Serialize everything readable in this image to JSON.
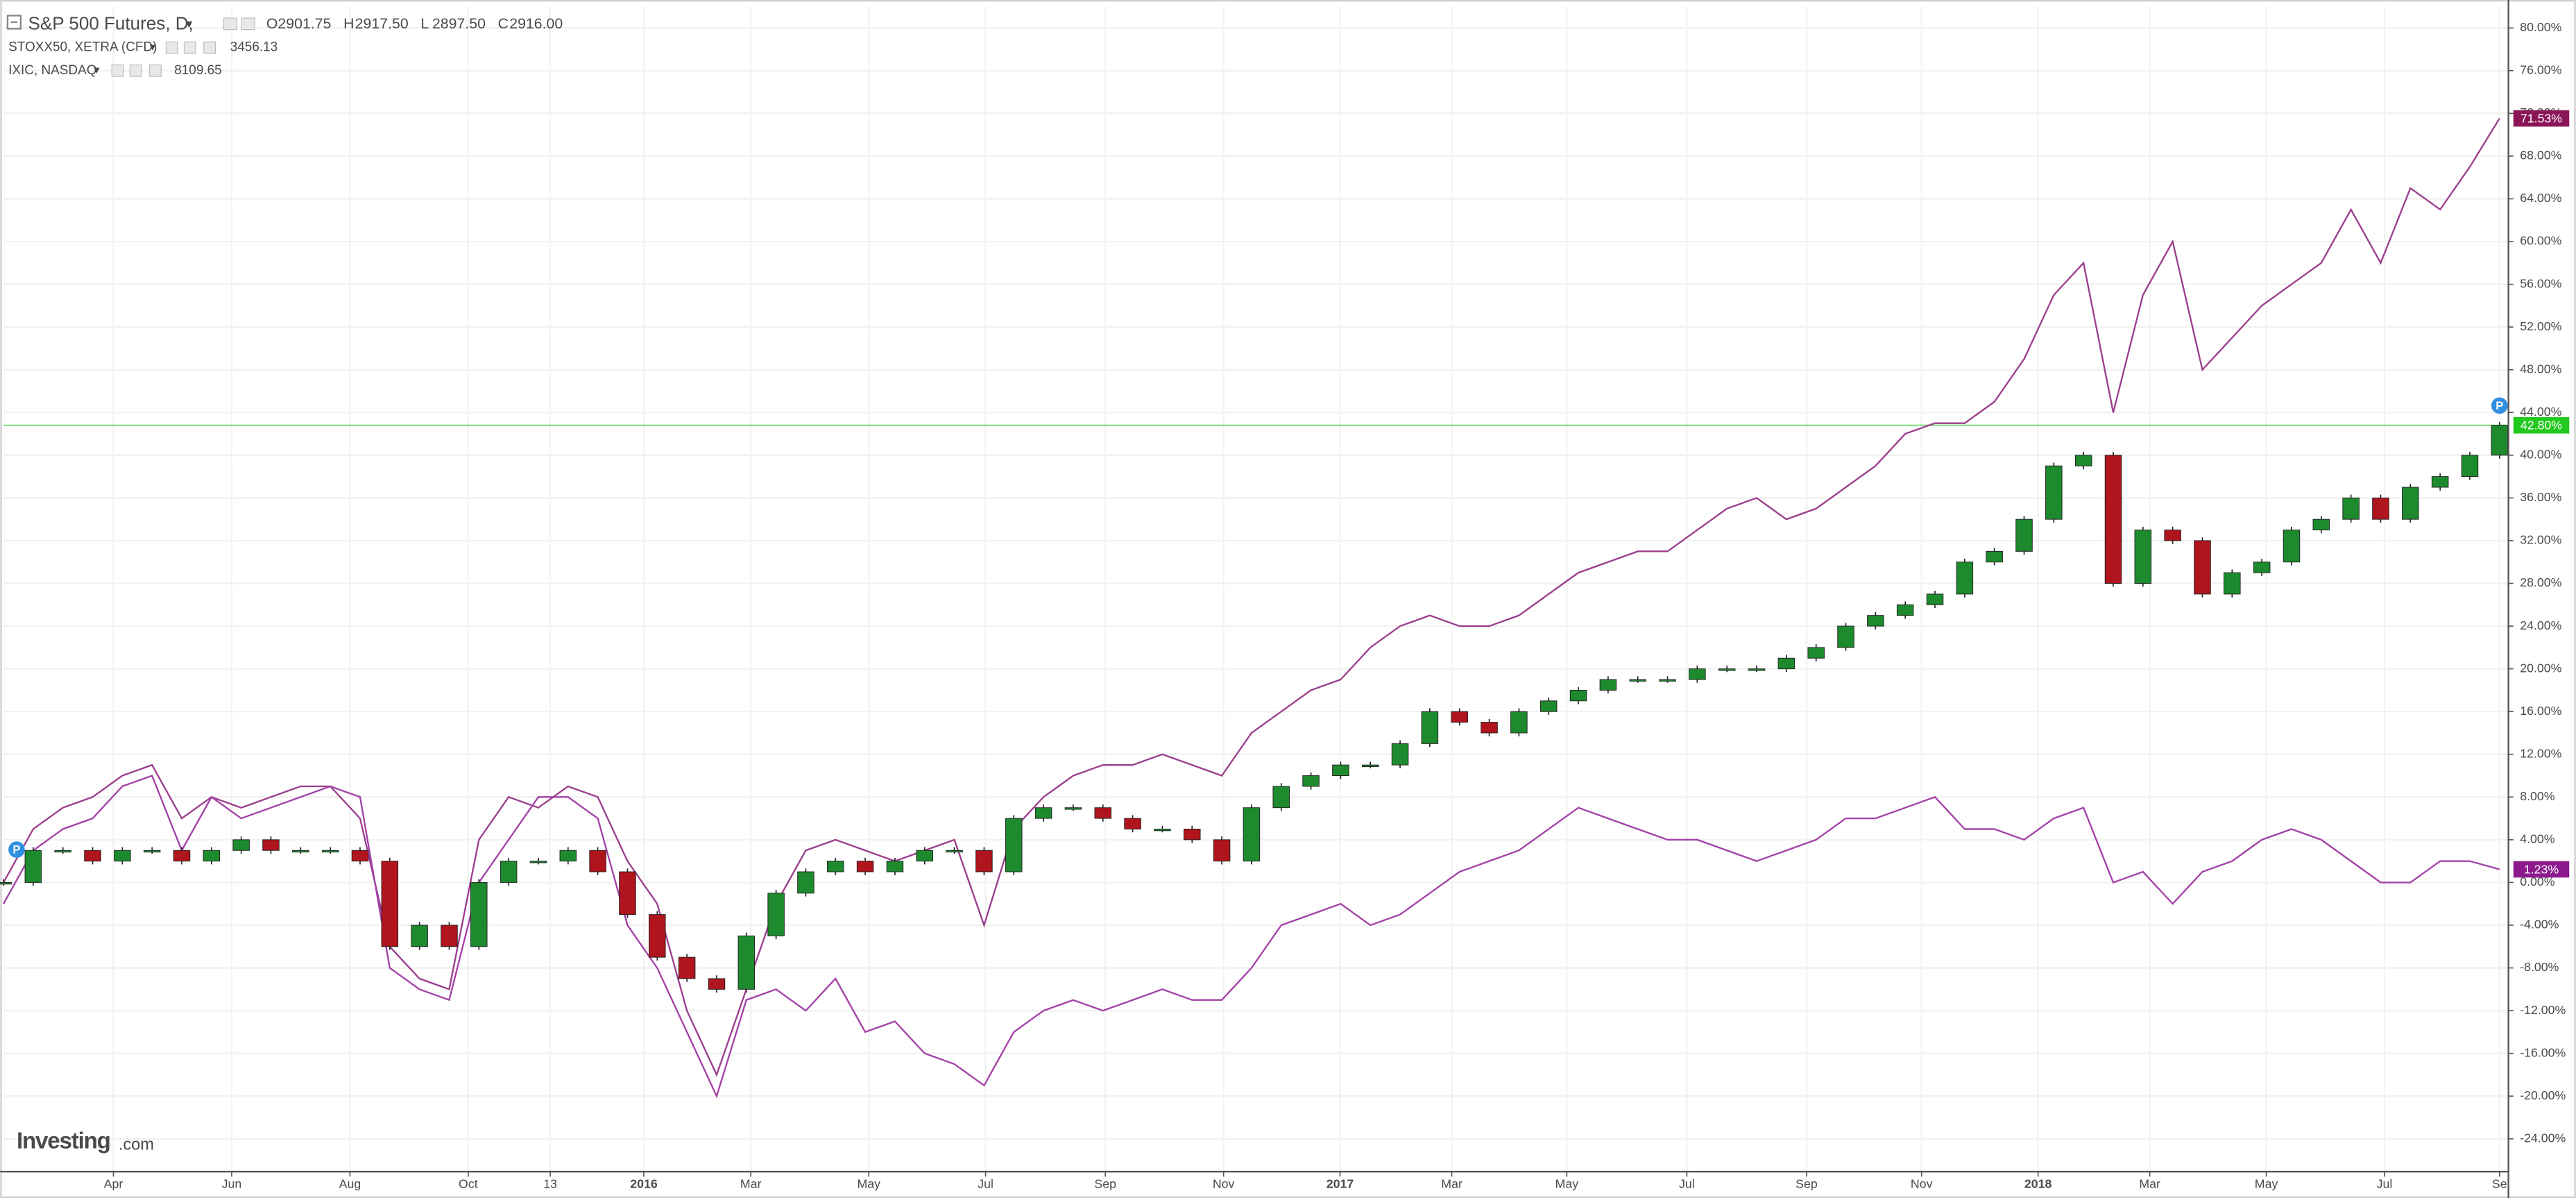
{
  "chart_data": {
    "type": "line",
    "xlim": [
      0,
      84.3
    ],
    "ylim": [
      -27,
      82
    ],
    "grid": true,
    "price_line": true,
    "brand": "Investing",
    "brand_suffix": ".com",
    "xticks": [
      {
        "value": 3.7,
        "label": "Apr"
      },
      {
        "value": 7.68,
        "label": "Jun"
      },
      {
        "value": 11.66,
        "label": "Aug"
      },
      {
        "value": 15.64,
        "label": "Oct"
      },
      {
        "value": 18.4,
        "label": "13"
      },
      {
        "value": 21.55,
        "label": "2016"
      },
      {
        "value": 25.15,
        "label": "Mar"
      },
      {
        "value": 29.12,
        "label": "May"
      },
      {
        "value": 33.05,
        "label": "Jul"
      },
      {
        "value": 37.08,
        "label": "Sep"
      },
      {
        "value": 41.06,
        "label": "Nov"
      },
      {
        "value": 44.98,
        "label": "2017"
      },
      {
        "value": 48.74,
        "label": "Mar"
      },
      {
        "value": 52.61,
        "label": "May"
      },
      {
        "value": 56.65,
        "label": "Jul"
      },
      {
        "value": 60.68,
        "label": "Sep"
      },
      {
        "value": 64.55,
        "label": "Nov"
      },
      {
        "value": 68.47,
        "label": "2018"
      },
      {
        "value": 72.23,
        "label": "Mar"
      },
      {
        "value": 76.15,
        "label": "May"
      },
      {
        "value": 80.13,
        "label": "Jul"
      },
      {
        "value": 84.0,
        "label": "Se"
      }
    ],
    "yticks": [
      {
        "value": -24,
        "label": "-24.00%"
      },
      {
        "value": -20,
        "label": "-20.00%"
      },
      {
        "value": -16,
        "label": "-16.00%"
      },
      {
        "value": -12,
        "label": "-12.00%"
      },
      {
        "value": -8,
        "label": "-8.00%"
      },
      {
        "value": -4,
        "label": "-4.00%"
      },
      {
        "value": 0,
        "label": "0.00%"
      },
      {
        "value": 4,
        "label": "4.00%"
      },
      {
        "value": 8,
        "label": "8.00%"
      },
      {
        "value": 12,
        "label": "12.00%"
      },
      {
        "value": 16,
        "label": "16.00%"
      },
      {
        "value": 20,
        "label": "20.00%"
      },
      {
        "value": 24,
        "label": "24.00%"
      },
      {
        "value": 28,
        "label": "28.00%"
      },
      {
        "value": 32,
        "label": "32.00%"
      },
      {
        "value": 36,
        "label": "36.00%"
      },
      {
        "value": 40,
        "label": "40.00%"
      },
      {
        "value": 44,
        "label": "44.00%"
      },
      {
        "value": 48,
        "label": "48.00%"
      },
      {
        "value": 52,
        "label": "52.00%"
      },
      {
        "value": 56,
        "label": "56.00%"
      },
      {
        "value": 60,
        "label": "60.00%"
      },
      {
        "value": 64,
        "label": "64.00%"
      },
      {
        "value": 68,
        "label": "68.00%"
      },
      {
        "value": 72,
        "label": "72.00%"
      },
      {
        "value": 76,
        "label": "76.00%"
      },
      {
        "value": 80,
        "label": "80.00%"
      }
    ],
    "series": [
      {
        "name": "S&P 500 Futures, D,",
        "type": "candlestick",
        "color": "#1e8a2e",
        "down_color": "#b0141c",
        "tag_color": "#22c91e",
        "last_label": "42.80%",
        "ohlc": [
          {
            "label": "O",
            "value": "2901.75"
          },
          {
            "label": "H",
            "value": "2917.50"
          },
          {
            "label": "L",
            "value": "2897.50"
          },
          {
            "label": "C",
            "value": "2916.00"
          }
        ],
        "values": [
          0,
          3,
          3,
          2,
          3,
          3,
          2,
          3,
          4,
          3,
          3,
          3,
          2,
          -6,
          -4,
          -6,
          0,
          2,
          2,
          3,
          1,
          -3,
          -7,
          -9,
          -10,
          -5,
          -1,
          1,
          2,
          1,
          2,
          3,
          3,
          1,
          6,
          7,
          7,
          6,
          5,
          5,
          4,
          2,
          7,
          9,
          10,
          11,
          11,
          13,
          16,
          15,
          14,
          16,
          17,
          18,
          19,
          19,
          19,
          20,
          20,
          20,
          21,
          22,
          24,
          25,
          26,
          27,
          30,
          31,
          34,
          39,
          40,
          28,
          33,
          32,
          27,
          29,
          30,
          33,
          34,
          36,
          34,
          37,
          38,
          40,
          42.8
        ]
      },
      {
        "name": "STOXX50, XETRA (CFD)",
        "color": "#a442a8",
        "tag_color": "#8c1a8e",
        "last_price": "3456.13",
        "last_label": "1.23%",
        "values": [
          -2,
          3,
          5,
          6,
          9,
          10,
          3,
          8,
          6,
          7,
          8,
          9,
          8,
          -8,
          -10,
          -11,
          0,
          4,
          8,
          8,
          6,
          -4,
          -8,
          -14,
          -20,
          -11,
          -10,
          -12,
          -9,
          -14,
          -13,
          -16,
          -17,
          -19,
          -14,
          -12,
          -11,
          -12,
          -11,
          -10,
          -11,
          -11,
          -8,
          -4,
          -3,
          -2,
          -4,
          -3,
          -1,
          1,
          2,
          3,
          5,
          7,
          6,
          5,
          4,
          4,
          3,
          2,
          3,
          4,
          6,
          6,
          7,
          8,
          5,
          5,
          4,
          6,
          7,
          0,
          1,
          -2,
          1,
          2,
          4,
          5,
          4,
          2,
          0,
          0,
          2,
          2,
          1.23
        ]
      },
      {
        "name": "IXIC, NASDAQ",
        "color": "#9c3f8e",
        "tag_color": "#8a1557",
        "last_price": "8109.65",
        "last_label": "71.53%",
        "values": [
          0,
          5,
          7,
          8,
          10,
          11,
          6,
          8,
          7,
          8,
          9,
          9,
          6,
          -6,
          -9,
          -10,
          4,
          8,
          7,
          9,
          8,
          2,
          -2,
          -12,
          -18,
          -10,
          -2,
          3,
          4,
          3,
          2,
          3,
          4,
          -4,
          5,
          8,
          10,
          11,
          11,
          12,
          11,
          10,
          14,
          16,
          18,
          19,
          22,
          24,
          25,
          24,
          24,
          25,
          27,
          29,
          30,
          31,
          31,
          33,
          35,
          36,
          34,
          35,
          37,
          39,
          42,
          43,
          43,
          45,
          49,
          55,
          58,
          44,
          55,
          60,
          48,
          51,
          54,
          56,
          58,
          63,
          58,
          65,
          63,
          67,
          71.53
        ]
      }
    ]
  }
}
